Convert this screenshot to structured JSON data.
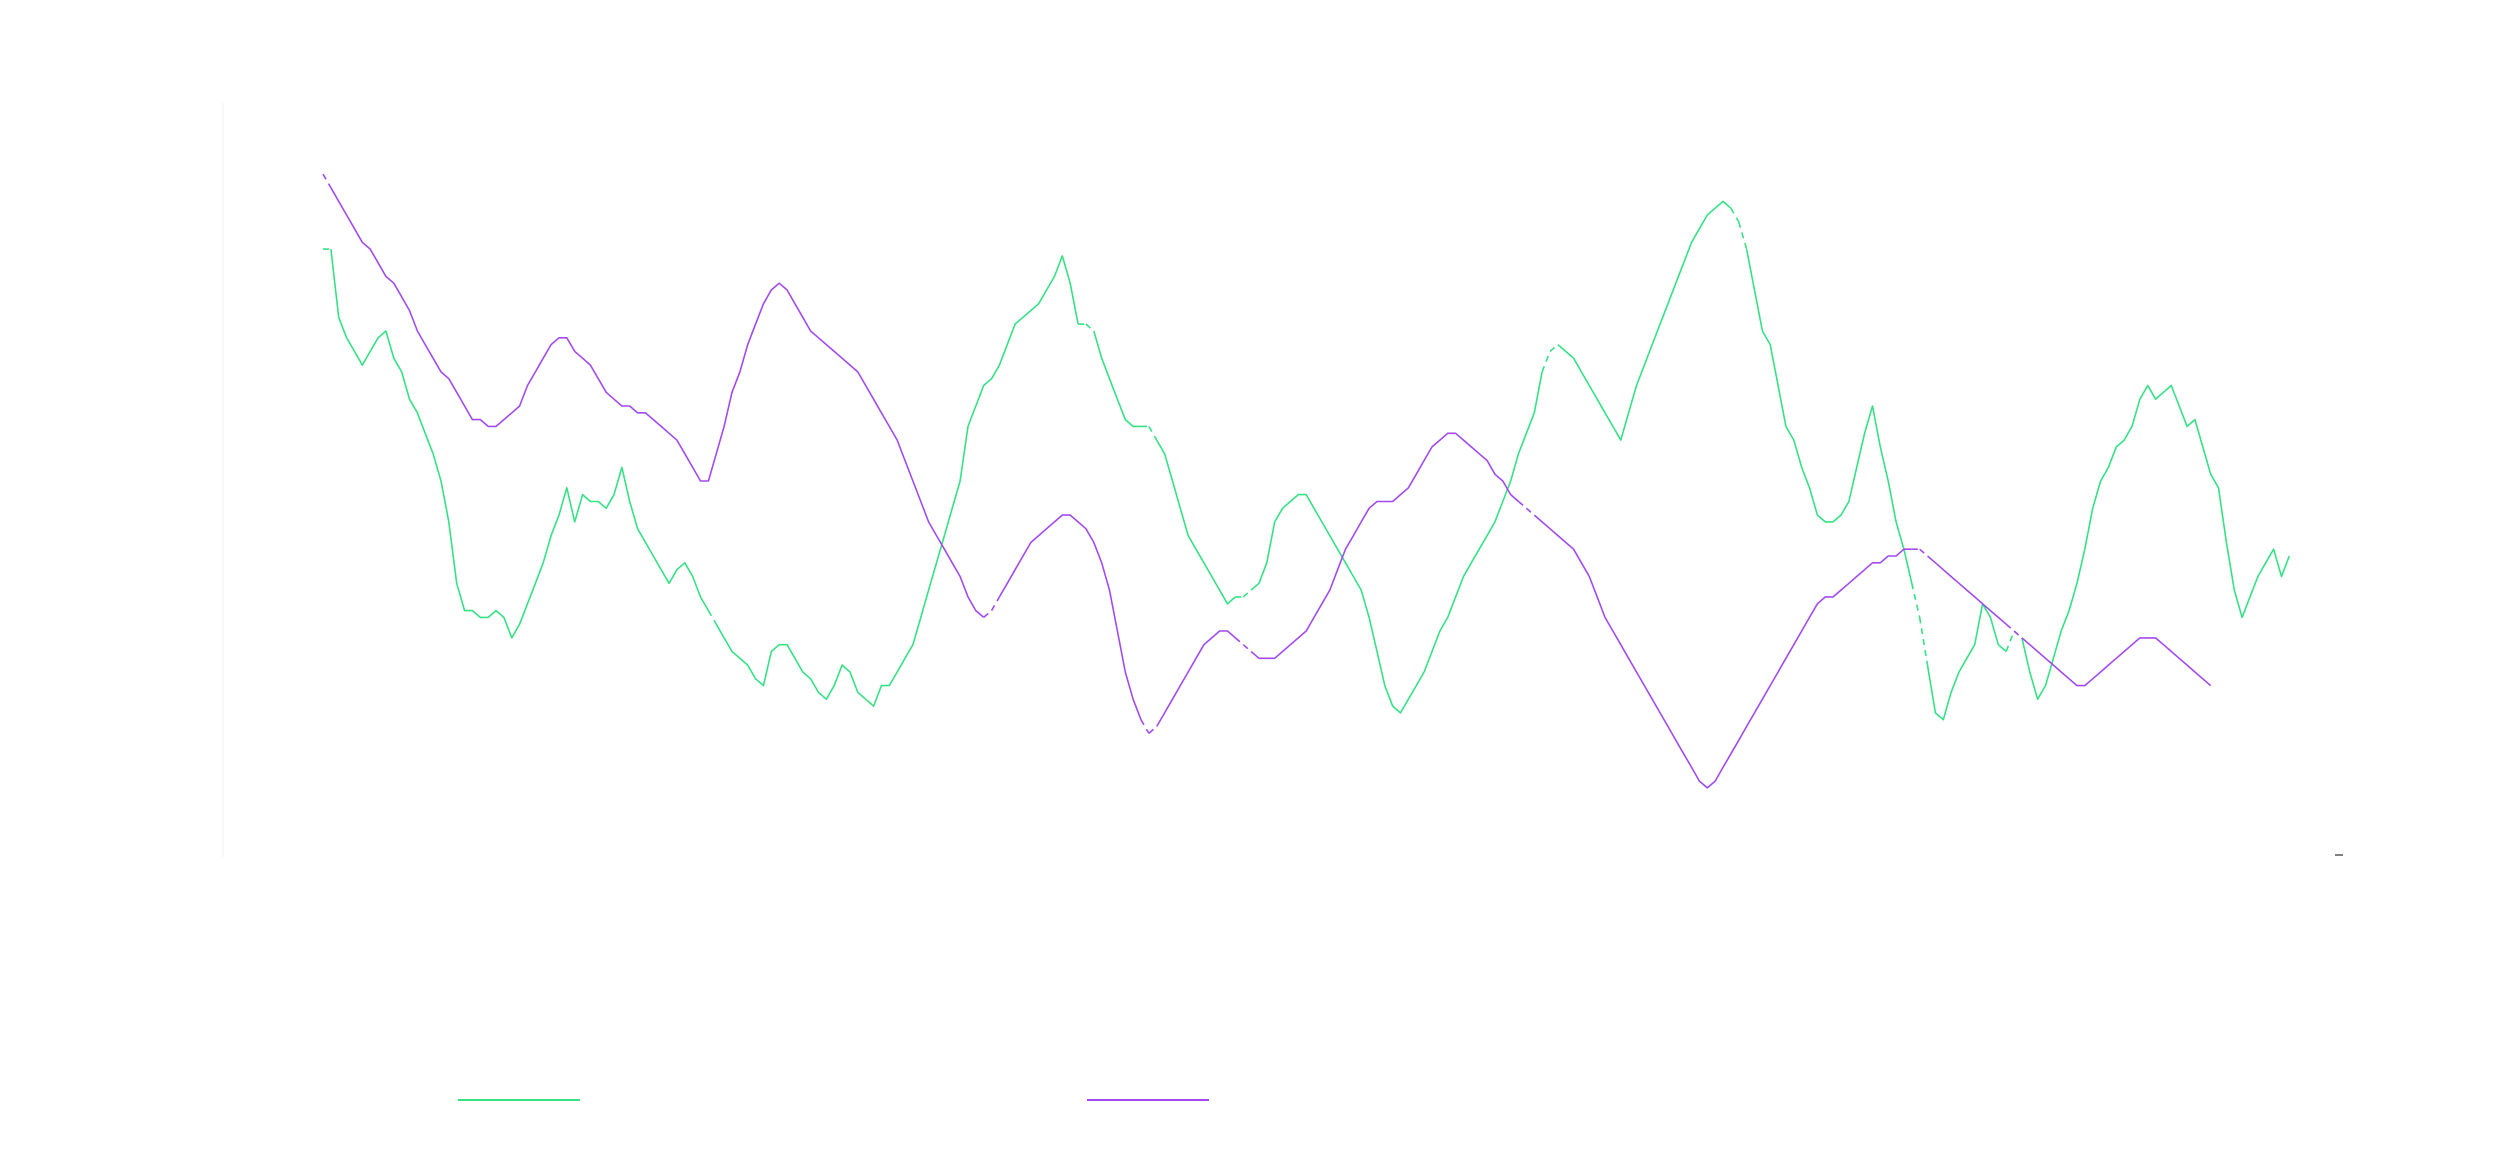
{
  "chart_data": {
    "type": "line",
    "title": "",
    "xlabel": "",
    "ylabel": "",
    "grid": false,
    "legend_position": "bottom",
    "x_range": [
      0,
      245
    ],
    "ylim": [
      0,
      100
    ],
    "colors": {
      "series_a": "#35e185",
      "series_b": "#a14bef"
    },
    "series": [
      {
        "name": "",
        "color": "#35e185",
        "dashed_gaps": [
          [
            0,
            1
          ],
          [
            49,
            50
          ],
          [
            96,
            98
          ],
          [
            104,
            106
          ],
          [
            116,
            118
          ],
          [
            155,
            157
          ],
          [
            179,
            181
          ],
          [
            202,
            204
          ],
          [
            214,
            216
          ]
        ],
        "values": [
          84,
          84,
          74,
          71,
          69,
          67,
          69,
          71,
          72,
          68,
          66,
          62,
          60,
          57,
          54,
          50,
          44,
          35,
          31,
          31,
          30,
          30,
          31,
          30,
          27,
          29,
          32,
          35,
          38,
          42,
          45,
          49,
          44,
          48,
          47,
          47,
          46,
          48,
          52,
          47,
          43,
          41,
          39,
          37,
          35,
          37,
          38,
          36,
          33,
          31,
          29,
          27,
          25,
          24,
          23,
          21,
          20,
          25,
          26,
          26,
          24,
          22,
          21,
          19,
          18,
          20,
          23,
          22,
          19,
          18,
          17,
          20,
          20,
          22,
          24,
          26,
          30,
          34,
          38,
          42,
          46,
          50,
          58,
          61,
          64,
          65,
          67,
          70,
          73,
          74,
          75,
          76,
          78,
          80,
          83,
          79,
          73,
          73,
          72,
          68,
          65,
          62,
          59,
          58,
          58,
          58,
          56,
          54,
          50,
          46,
          42,
          40,
          38,
          36,
          34,
          32,
          33,
          33,
          34,
          35,
          38,
          44,
          46,
          47,
          48,
          48,
          46,
          44,
          42,
          40,
          38,
          36,
          34,
          30,
          25,
          20,
          17,
          16,
          18,
          20,
          22,
          25,
          28,
          30,
          33,
          36,
          38,
          40,
          42,
          44,
          47,
          50,
          54,
          57,
          60,
          66,
          69,
          70,
          69,
          68,
          66,
          64,
          62,
          60,
          58,
          56,
          60,
          64,
          67,
          70,
          73,
          76,
          79,
          82,
          85,
          87,
          89,
          90,
          91,
          90,
          88,
          84,
          78,
          72,
          70,
          64,
          58,
          56,
          52,
          49,
          45,
          44,
          44,
          45,
          47,
          52,
          57,
          61,
          55,
          50,
          44,
          40,
          35,
          30,
          23,
          16,
          15,
          19,
          22,
          24,
          26,
          32,
          30,
          26,
          25,
          28,
          27,
          22,
          18,
          20,
          24,
          28,
          31,
          35,
          40,
          46,
          50,
          52,
          55,
          56,
          58,
          62,
          64,
          62,
          63,
          64,
          61,
          58,
          59,
          55,
          51,
          49,
          41,
          34,
          30,
          33,
          36,
          38,
          40,
          36,
          39
        ]
      },
      {
        "name": "",
        "color": "#a14bef",
        "dashed_gaps": [
          [
            0,
            1
          ],
          [
            84,
            86
          ],
          [
            104,
            106
          ],
          [
            116,
            118
          ],
          [
            152,
            154
          ],
          [
            202,
            204
          ],
          [
            214,
            216
          ]
        ],
        "values": [
          95,
          93,
          91,
          89,
          87,
          85,
          84,
          82,
          80,
          79,
          77,
          75,
          72,
          70,
          68,
          66,
          65,
          63,
          61,
          59,
          59,
          58,
          58,
          59,
          60,
          61,
          64,
          66,
          68,
          70,
          71,
          71,
          69,
          68,
          67,
          65,
          63,
          62,
          61,
          61,
          60,
          60,
          59,
          58,
          57,
          56,
          54,
          52,
          50,
          50,
          54,
          58,
          63,
          66,
          70,
          73,
          76,
          78,
          79,
          78,
          76,
          74,
          72,
          71,
          70,
          69,
          68,
          67,
          66,
          64,
          62,
          60,
          58,
          56,
          53,
          50,
          47,
          44,
          42,
          40,
          38,
          36,
          33,
          31,
          30,
          31,
          33,
          35,
          37,
          39,
          41,
          42,
          43,
          44,
          45,
          45,
          44,
          43,
          41,
          38,
          34,
          28,
          22,
          18,
          15,
          13,
          14,
          16,
          18,
          20,
          22,
          24,
          26,
          27,
          28,
          28,
          27,
          26,
          25,
          24,
          24,
          24,
          25,
          26,
          27,
          28,
          30,
          32,
          34,
          37,
          40,
          42,
          44,
          46,
          47,
          47,
          47,
          48,
          49,
          51,
          53,
          55,
          56,
          57,
          57,
          56,
          55,
          54,
          53,
          51,
          50,
          48,
          47,
          46,
          45,
          44,
          43,
          42,
          41,
          40,
          38,
          36,
          33,
          30,
          28,
          26,
          24,
          22,
          20,
          18,
          16,
          14,
          12,
          10,
          8,
          6,
          5,
          6,
          8,
          10,
          12,
          14,
          16,
          18,
          20,
          22,
          24,
          26,
          28,
          30,
          32,
          33,
          33,
          34,
          35,
          36,
          37,
          38,
          38,
          39,
          39,
          40,
          40,
          40,
          39,
          38,
          37,
          36,
          35,
          34,
          33,
          32,
          31,
          30,
          29,
          28,
          27,
          26,
          25,
          24,
          23,
          22,
          21,
          20,
          20,
          21,
          22,
          23,
          24,
          25,
          26,
          27,
          27,
          27,
          26,
          25,
          24,
          23,
          22,
          21,
          20
        ]
      }
    ]
  }
}
